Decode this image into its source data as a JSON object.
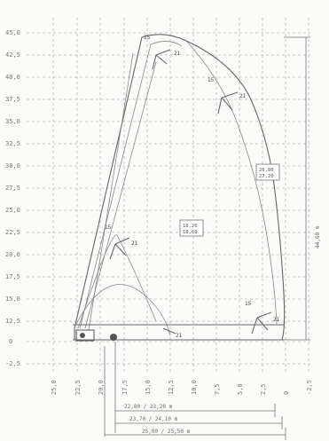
{
  "diagram": {
    "y_axis_ticks": [
      "45,0",
      "42,5",
      "40,0",
      "37,5",
      "35,0",
      "32,5",
      "30,0",
      "27,5",
      "25,0",
      "22,5",
      "20,0",
      "17,5",
      "15,0",
      "12,5",
      "10,0",
      "7,5",
      "5,0",
      "2,5",
      "0",
      "-2,5"
    ],
    "x_axis_ticks": [
      "25,0",
      "22,5",
      "20,0",
      "17,5",
      "15,0",
      "12,5",
      "10,0",
      "7,5",
      "5,0",
      "2,5",
      "0",
      "-2,5"
    ],
    "right_dimension": "44,60 m",
    "box_center": [
      "18,20",
      "18,60"
    ],
    "box_right": [
      "26,80",
      "27,20"
    ],
    "bottom_dimensions": [
      "22,80 / 23,20 m",
      "23,70 / 24,10 m",
      "25,00 / 25,50 m"
    ],
    "pos_labels": {
      "top_a": "15",
      "top_b": "21",
      "mid_a": "15",
      "mid_b": "21",
      "left_a": "15",
      "left_b": "21",
      "low_a": "15",
      "low_b": "21",
      "base_a": "21"
    }
  }
}
